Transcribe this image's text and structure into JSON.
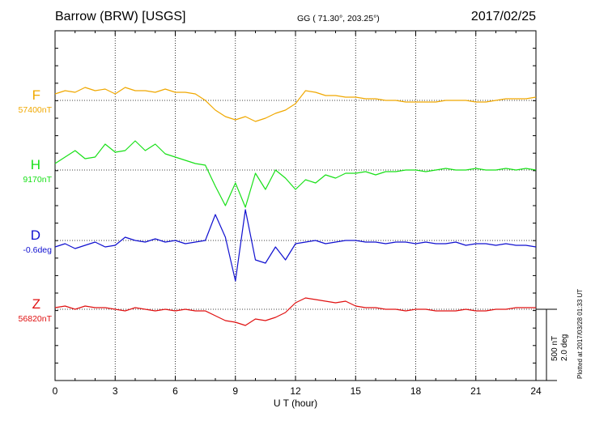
{
  "header": {
    "station": "Barrow (BRW)  [USGS]",
    "coords": "GG ( 71.30°, 203.25°)",
    "date": "2017/02/25"
  },
  "plotted_note": "Plotted at 2017/03/28 01:33 UT",
  "scale": {
    "nt": "500 nT",
    "deg": "2.0 deg"
  },
  "colors": {
    "F": "#f0a800",
    "H": "#18e018",
    "D": "#1010d0",
    "Z": "#e01010"
  },
  "chart_data": {
    "type": "line",
    "xlabel": "U T (hour)",
    "xlim": [
      0,
      24
    ],
    "xticks": [
      "0",
      "3",
      "6",
      "9",
      "12",
      "15",
      "18",
      "21",
      "24"
    ],
    "grid": true,
    "x": [
      0,
      0.5,
      1,
      1.5,
      2,
      2.5,
      3,
      3.5,
      4,
      4.5,
      5,
      5.5,
      6,
      6.5,
      7,
      7.5,
      8,
      8.5,
      9,
      9.5,
      10,
      10.5,
      11,
      11.5,
      12,
      12.5,
      13,
      13.5,
      14,
      14.5,
      15,
      15.5,
      16,
      16.5,
      17,
      17.5,
      18,
      18.5,
      19,
      19.5,
      20,
      20.5,
      21,
      21.5,
      22,
      22.5,
      23,
      23.5,
      24
    ],
    "series": [
      {
        "name": "F",
        "baseline_label": "57400nT",
        "values": [
          40,
          60,
          50,
          80,
          60,
          70,
          40,
          80,
          60,
          60,
          50,
          70,
          50,
          50,
          40,
          0,
          -60,
          -100,
          -120,
          -100,
          -130,
          -110,
          -80,
          -60,
          -20,
          60,
          50,
          30,
          30,
          20,
          20,
          10,
          10,
          0,
          0,
          -10,
          -10,
          -10,
          -10,
          0,
          0,
          0,
          -10,
          -10,
          0,
          10,
          10,
          10,
          20
        ]
      },
      {
        "name": "H",
        "baseline_label": "9170nT",
        "values": [
          40,
          80,
          120,
          70,
          80,
          160,
          110,
          120,
          180,
          120,
          160,
          100,
          80,
          60,
          40,
          30,
          -100,
          -220,
          -80,
          -230,
          -20,
          -120,
          0,
          -50,
          -120,
          -60,
          -80,
          -30,
          -50,
          -20,
          -20,
          -10,
          -30,
          -10,
          -10,
          0,
          0,
          -10,
          0,
          10,
          0,
          0,
          10,
          0,
          0,
          10,
          0,
          10,
          0
        ]
      },
      {
        "name": "D",
        "baseline_label": "-0.6deg",
        "values": [
          -40,
          -20,
          -50,
          -30,
          -10,
          -40,
          -30,
          20,
          0,
          -10,
          10,
          -10,
          0,
          -20,
          -10,
          0,
          160,
          20,
          -250,
          190,
          -120,
          -140,
          -40,
          -120,
          -20,
          -10,
          0,
          -20,
          -10,
          0,
          0,
          -10,
          -10,
          -20,
          -10,
          -10,
          -20,
          -10,
          -20,
          -20,
          -10,
          -30,
          -20,
          -20,
          -30,
          -20,
          -30,
          -30,
          -40
        ]
      },
      {
        "name": "Z",
        "baseline_label": "56820nT",
        "values": [
          10,
          20,
          0,
          20,
          10,
          10,
          0,
          -10,
          10,
          0,
          -10,
          0,
          -10,
          0,
          -10,
          -10,
          -40,
          -70,
          -80,
          -100,
          -60,
          -70,
          -50,
          -20,
          40,
          70,
          60,
          50,
          40,
          50,
          20,
          10,
          10,
          0,
          0,
          -10,
          0,
          0,
          -10,
          -10,
          -10,
          0,
          -10,
          -10,
          0,
          0,
          10,
          10,
          10
        ]
      }
    ]
  }
}
